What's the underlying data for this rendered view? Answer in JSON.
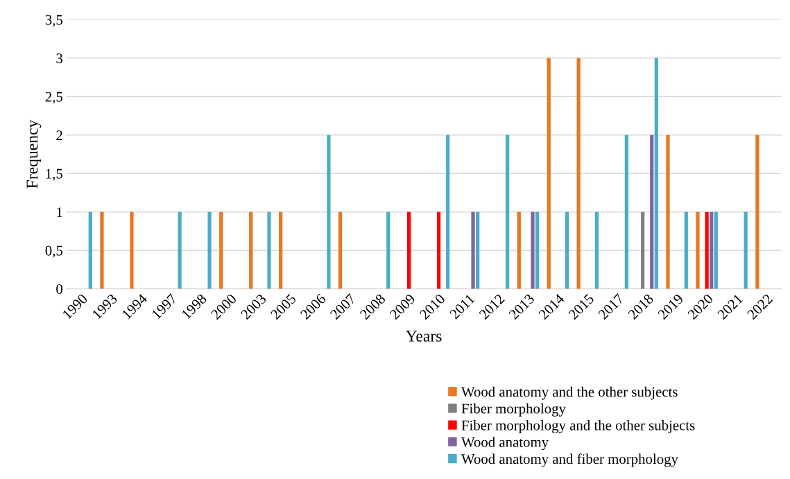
{
  "chart_data": {
    "type": "bar",
    "xlabel": "Years",
    "ylabel": "Frequency",
    "categories": [
      "1990",
      "1993",
      "1994",
      "1997",
      "1998",
      "2000",
      "2003",
      "2005",
      "2006",
      "2007",
      "2008",
      "2009",
      "2010",
      "2011",
      "2012",
      "2013",
      "2014",
      "2015",
      "2017",
      "2018",
      "2019",
      "2020",
      "2021",
      "2022"
    ],
    "series": [
      {
        "name": "Wood anatomy and the other subjects",
        "color": "#e87722",
        "values": [
          null,
          1,
          1,
          null,
          null,
          1,
          1,
          1,
          null,
          1,
          null,
          null,
          null,
          null,
          null,
          1,
          3,
          3,
          null,
          null,
          2,
          1,
          null,
          2
        ]
      },
      {
        "name": "Fiber morphology",
        "color": "#808080",
        "values": [
          null,
          null,
          null,
          null,
          null,
          null,
          null,
          null,
          null,
          null,
          null,
          null,
          null,
          null,
          null,
          null,
          null,
          null,
          null,
          1,
          null,
          null,
          null,
          null
        ]
      },
      {
        "name": "Fiber morphology and the other subjects",
        "color": "#ff0000",
        "values": [
          null,
          null,
          null,
          null,
          null,
          null,
          null,
          null,
          null,
          null,
          null,
          1,
          1,
          null,
          null,
          null,
          null,
          null,
          null,
          null,
          null,
          1,
          null,
          null
        ]
      },
      {
        "name": "Wood anatomy",
        "color": "#8064a2",
        "values": [
          null,
          null,
          null,
          null,
          null,
          null,
          null,
          null,
          null,
          null,
          null,
          null,
          null,
          1,
          null,
          1,
          null,
          null,
          null,
          2,
          null,
          1,
          null,
          null
        ]
      },
      {
        "name": "Wood anatomy and fiber morphology",
        "color": "#4bacc6",
        "values": [
          1,
          null,
          null,
          1,
          1,
          null,
          1,
          null,
          2,
          null,
          1,
          null,
          2,
          1,
          2,
          1,
          1,
          1,
          2,
          3,
          1,
          1,
          1,
          null
        ]
      }
    ],
    "ylim": [
      0,
      3.5
    ],
    "yticks": [
      0,
      {
        "value": 0.5,
        "label": "0,5"
      },
      1,
      {
        "value": 1.5,
        "label": "1,5"
      },
      2,
      {
        "value": 2.5,
        "label": "2,5"
      },
      3,
      {
        "value": 3.5,
        "label": "3,5"
      }
    ],
    "grid": "y",
    "legend": "bottom"
  }
}
